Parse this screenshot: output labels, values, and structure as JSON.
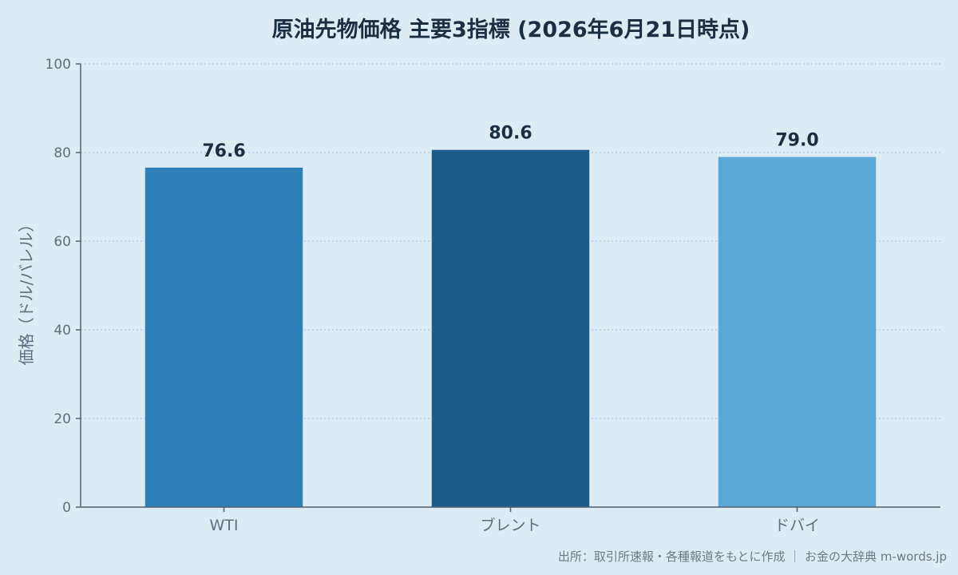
{
  "chart_data": {
    "type": "bar",
    "title": "原油先物価格 主要3指標 (2026年6月21日時点)",
    "xlabel": "",
    "ylabel": "価格（ドル/バレル）",
    "categories": [
      "WTI",
      "ブレント",
      "ドバイ"
    ],
    "values": [
      76.6,
      80.6,
      79.0
    ],
    "value_labels": [
      "76.6",
      "80.6",
      "79.0"
    ],
    "bar_colors": [
      "#2e80b6",
      "#1d5b88",
      "#5ba7d5"
    ],
    "ylim": [
      0,
      100
    ],
    "yticks": [
      0,
      20,
      40,
      60,
      80,
      100
    ],
    "grid": true,
    "legend": "none"
  },
  "source": "出所：取引所速報・各種報道をもとに作成 ｜ お金の大辞典 m-words.jp",
  "colors": {
    "background": "#ddebf5",
    "title": "#1b2f44",
    "axis": "#4d6174",
    "tick_label": "#5c6f82",
    "grid": "#a8c8de",
    "value_label": "#1b2f44",
    "source": "#6b7a89"
  }
}
